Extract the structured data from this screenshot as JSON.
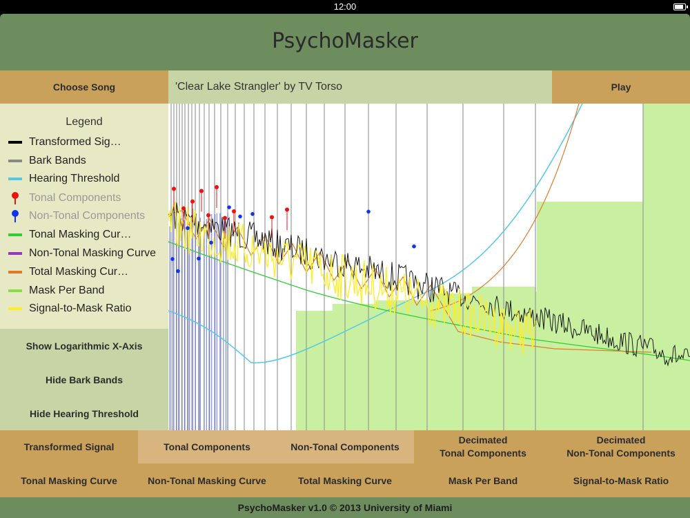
{
  "status": {
    "time": "12:00"
  },
  "app": {
    "title": "PsychoMasker"
  },
  "top": {
    "choose_song": "Choose Song",
    "song": "'Clear Lake Strangler' by TV Torso",
    "play": "Play"
  },
  "legend": {
    "title": "Legend",
    "items": [
      {
        "label": "Transformed Sig…",
        "color": "#000000",
        "kind": "line",
        "enabled": true
      },
      {
        "label": "Bark Bands",
        "color": "#888888",
        "kind": "line",
        "enabled": true
      },
      {
        "label": "Hearing Threshold",
        "color": "#55c8e8",
        "kind": "line",
        "enabled": true
      },
      {
        "label": "Tonal Components",
        "color": "#ee1111",
        "kind": "pin",
        "enabled": false
      },
      {
        "label": "Non-Tonal Components",
        "color": "#1133ee",
        "kind": "pin",
        "enabled": false
      },
      {
        "label": "Tonal Masking Cur…",
        "color": "#33cc33",
        "kind": "line",
        "enabled": true
      },
      {
        "label": "Non-Tonal Masking Curve",
        "color": "#9933cc",
        "kind": "line",
        "enabled": true
      },
      {
        "label": "Total Masking Cur…",
        "color": "#e07a2a",
        "kind": "line",
        "enabled": true
      },
      {
        "label": "Mask Per Band",
        "color": "#88dd44",
        "kind": "line",
        "enabled": true
      },
      {
        "label": "Signal-to-Mask Ratio",
        "color": "#ffee22",
        "kind": "line",
        "enabled": true
      }
    ]
  },
  "left_buttons": {
    "log_x": "Show Logarithmic X-Axis",
    "bark": "Hide Bark Bands",
    "threshold": "Hide Hearing Threshold"
  },
  "bottom_row1": {
    "transformed": "Transformed Signal",
    "tonal": "Tonal Components",
    "nontonal": "Non-Tonal Components",
    "dec_tonal": "Decimated\nTonal Components",
    "dec_nontonal": "Decimated\nNon-Tonal Components"
  },
  "bottom_row2": {
    "tonal_mask": "Tonal Masking Curve",
    "nontonal_mask": "Non-Tonal Masking Curve",
    "total_mask": "Total Masking Curve",
    "mask_band": "Mask Per Band",
    "smr": "Signal-to-Mask Ratio"
  },
  "footer": "PsychoMasker v1.0 © 2013 University of Miami"
}
